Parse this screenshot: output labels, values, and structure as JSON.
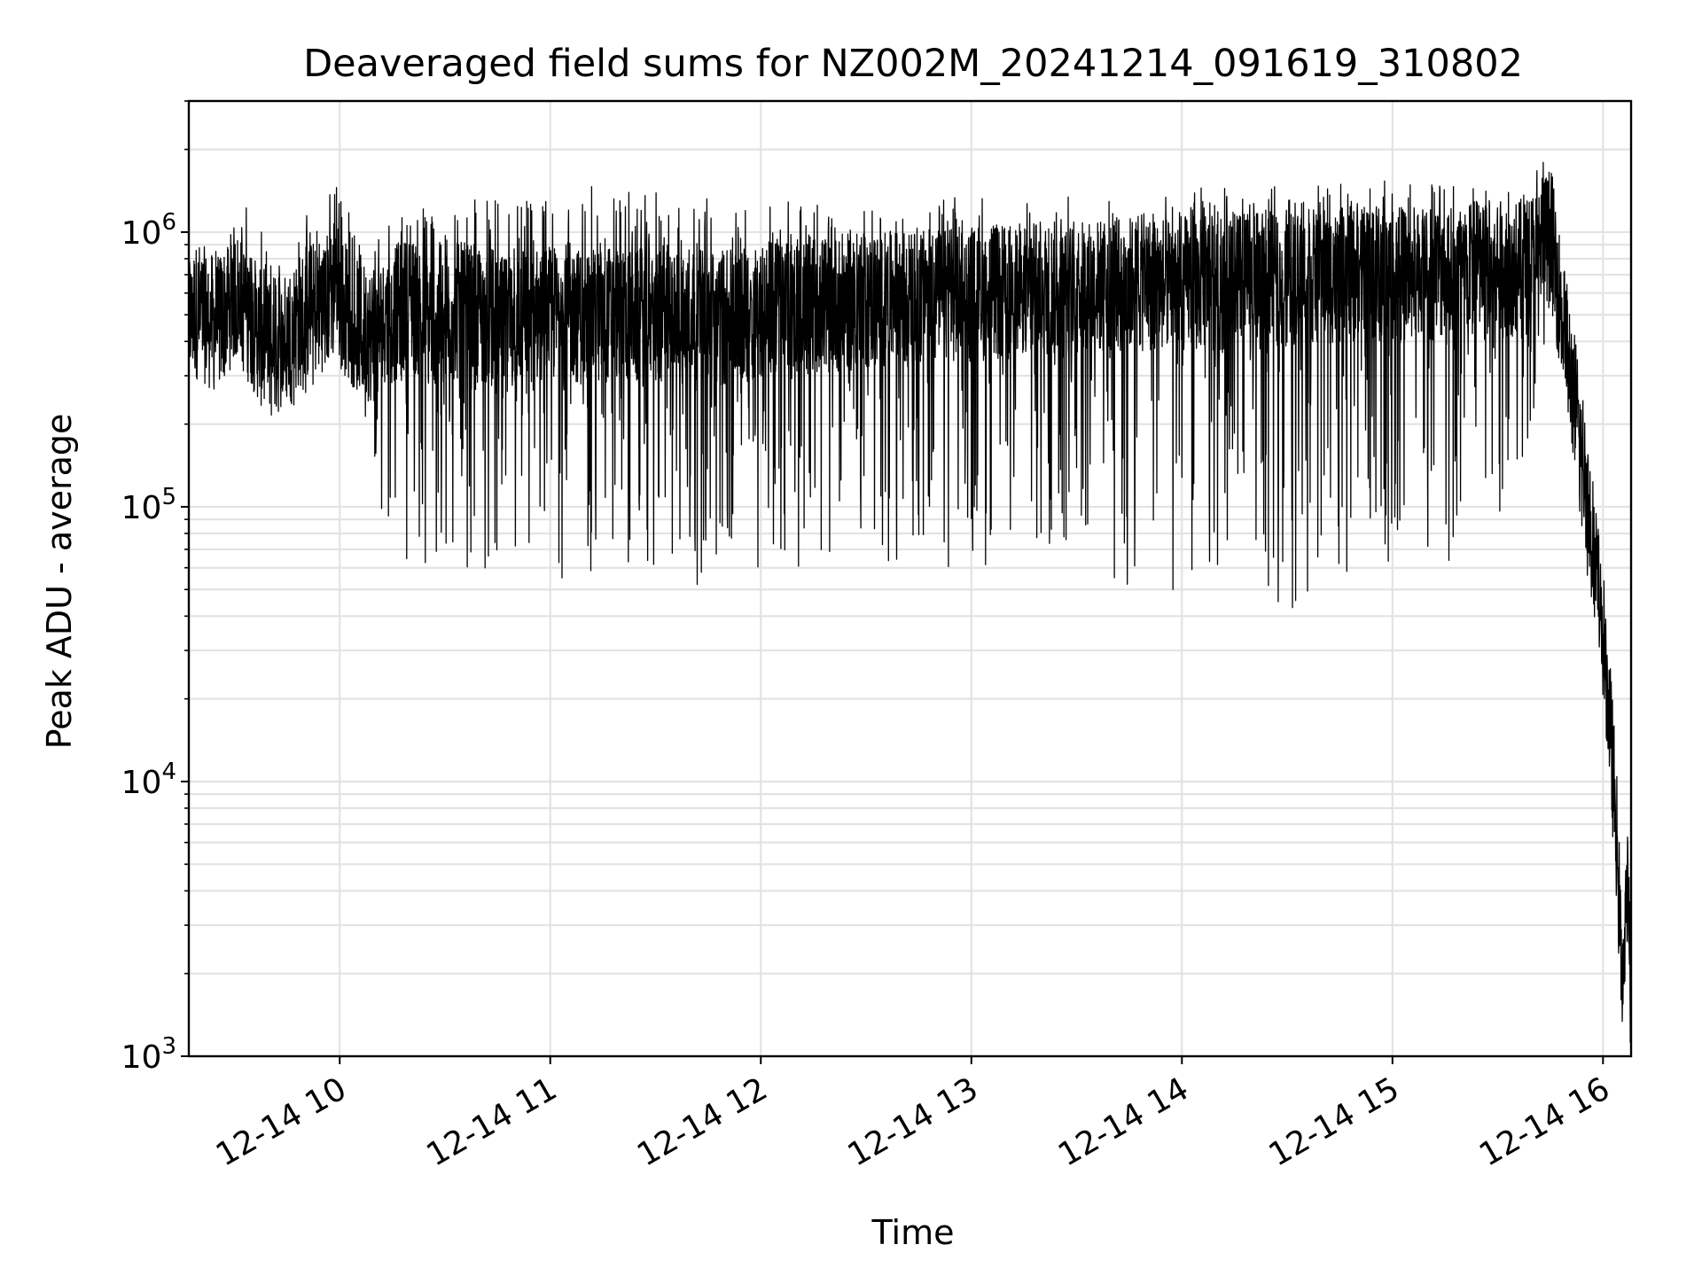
{
  "chart_data": {
    "type": "line",
    "title": "Deaveraged field sums for NZ002M_20241214_091619_310802",
    "xlabel": "Time",
    "ylabel": "Peak ADU - average",
    "x_type": "time",
    "xlim": [
      "2024-12-14 09:17",
      "2024-12-14 16:08"
    ],
    "ylim": [
      1000,
      3000000
    ],
    "y_scale": "log",
    "grid": true,
    "legend": "none",
    "line_color": "#000000",
    "x_ticks": [
      {
        "value": "2024-12-14 10:00",
        "label": "12-14 10"
      },
      {
        "value": "2024-12-14 11:00",
        "label": "12-14 11"
      },
      {
        "value": "2024-12-14 12:00",
        "label": "12-14 12"
      },
      {
        "value": "2024-12-14 13:00",
        "label": "12-14 13"
      },
      {
        "value": "2024-12-14 14:00",
        "label": "12-14 14"
      },
      {
        "value": "2024-12-14 15:00",
        "label": "12-14 15"
      },
      {
        "value": "2024-12-14 16:00",
        "label": "12-14 16"
      }
    ],
    "y_ticks": [
      {
        "value": 1000,
        "base": "10",
        "exp": "3"
      },
      {
        "value": 10000,
        "base": "10",
        "exp": "4"
      },
      {
        "value": 100000,
        "base": "10",
        "exp": "5"
      },
      {
        "value": 1000000,
        "base": "10",
        "exp": "6"
      }
    ],
    "series": [
      {
        "x": [
          "2024-12-14 09:17",
          "2024-12-14 09:20",
          "2024-12-14 09:25",
          "2024-12-14 09:30",
          "2024-12-14 09:35",
          "2024-12-14 09:40",
          "2024-12-14 09:45",
          "2024-12-14 09:50",
          "2024-12-14 09:55",
          "2024-12-14 09:59",
          "2024-12-14 10:05",
          "2024-12-14 10:10",
          "2024-12-14 10:15",
          "2024-12-14 10:20",
          "2024-12-14 10:25",
          "2024-12-14 10:30",
          "2024-12-14 10:35",
          "2024-12-14 10:40",
          "2024-12-14 10:45",
          "2024-12-14 10:50",
          "2024-12-14 10:55",
          "2024-12-14 11:00",
          "2024-12-14 11:05",
          "2024-12-14 11:10",
          "2024-12-14 11:15",
          "2024-12-14 11:20",
          "2024-12-14 11:25",
          "2024-12-14 11:30",
          "2024-12-14 11:35",
          "2024-12-14 11:40",
          "2024-12-14 11:45",
          "2024-12-14 11:50",
          "2024-12-14 11:55",
          "2024-12-14 12:00",
          "2024-12-14 12:10",
          "2024-12-14 12:20",
          "2024-12-14 12:30",
          "2024-12-14 12:40",
          "2024-12-14 12:50",
          "2024-12-14 13:00",
          "2024-12-14 13:10",
          "2024-12-14 13:20",
          "2024-12-14 13:30",
          "2024-12-14 13:40",
          "2024-12-14 13:50",
          "2024-12-14 14:00",
          "2024-12-14 14:10",
          "2024-12-14 14:20",
          "2024-12-14 14:30",
          "2024-12-14 14:40",
          "2024-12-14 14:50",
          "2024-12-14 15:00",
          "2024-12-14 15:10",
          "2024-12-14 15:20",
          "2024-12-14 15:30",
          "2024-12-14 15:38",
          "2024-12-14 15:45",
          "2024-12-14 15:50",
          "2024-12-14 15:53",
          "2024-12-14 15:56",
          "2024-12-14 15:59",
          "2024-12-14 16:01",
          "2024-12-14 16:03",
          "2024-12-14 16:04",
          "2024-12-14 16:05",
          "2024-12-14 16:06",
          "2024-12-14 16:07",
          "2024-12-14 16:08"
        ],
        "y": [
          500000,
          520000,
          450000,
          600000,
          480000,
          350000,
          420000,
          500000,
          550000,
          600000,
          450000,
          420000,
          500000,
          550000,
          500000,
          480000,
          520000,
          500000,
          450000,
          480000,
          500000,
          500000,
          520000,
          480000,
          500000,
          520000,
          480000,
          500000,
          480000,
          520000,
          500000,
          480000,
          500000,
          520000,
          550000,
          550000,
          560000,
          570000,
          580000,
          600000,
          600000,
          620000,
          620000,
          640000,
          650000,
          650000,
          660000,
          670000,
          680000,
          690000,
          700000,
          700000,
          710000,
          720000,
          730000,
          750000,
          1000000,
          350000,
          200000,
          100000,
          45000,
          25000,
          10000,
          6000,
          2500,
          2000,
          4000,
          1500
        ],
        "envelope_max": [
          700000,
          750000,
          900000,
          1200000,
          1300000,
          800000,
          900000,
          1200000,
          1100000,
          1800000,
          1000000,
          1100000,
          1200000,
          1200000,
          1300000,
          1300000,
          1400000,
          1400000,
          1300000,
          1400000,
          1300000,
          1400000,
          1300000,
          1400000,
          1600000,
          1400000,
          1500000,
          1400000,
          1300000,
          1300000,
          1400000,
          1300000,
          1200000,
          1300000,
          1300000,
          1300000,
          1300000,
          1300000,
          1300000,
          1400000,
          1300000,
          1300000,
          1400000,
          1300000,
          1300000,
          1400000,
          1500000,
          1400000,
          1500000,
          1500000,
          1500000,
          1600000,
          1600000,
          1600000,
          1600000,
          1600000,
          2000000,
          400000,
          250000,
          120000,
          60000,
          30000,
          12000,
          8000,
          4000,
          3000,
          5000,
          1500
        ],
        "envelope_min": [
          350000,
          330000,
          380000,
          400000,
          350000,
          280000,
          220000,
          250000,
          300000,
          400000,
          300000,
          100000,
          90000,
          60000,
          50000,
          55000,
          60000,
          60000,
          55000,
          60000,
          55000,
          55000,
          45000,
          55000,
          60000,
          55000,
          60000,
          55000,
          55000,
          50000,
          55000,
          60000,
          60000,
          60000,
          60000,
          65000,
          60000,
          65000,
          60000,
          60000,
          60000,
          60000,
          55000,
          50000,
          50000,
          45000,
          60000,
          55000,
          40000,
          50000,
          55000,
          60000,
          60000,
          60000,
          60000,
          150000,
          500000,
          200000,
          100000,
          50000,
          25000,
          20000,
          8000,
          5000,
          1800,
          1500,
          3000,
          1400
        ]
      }
    ]
  }
}
